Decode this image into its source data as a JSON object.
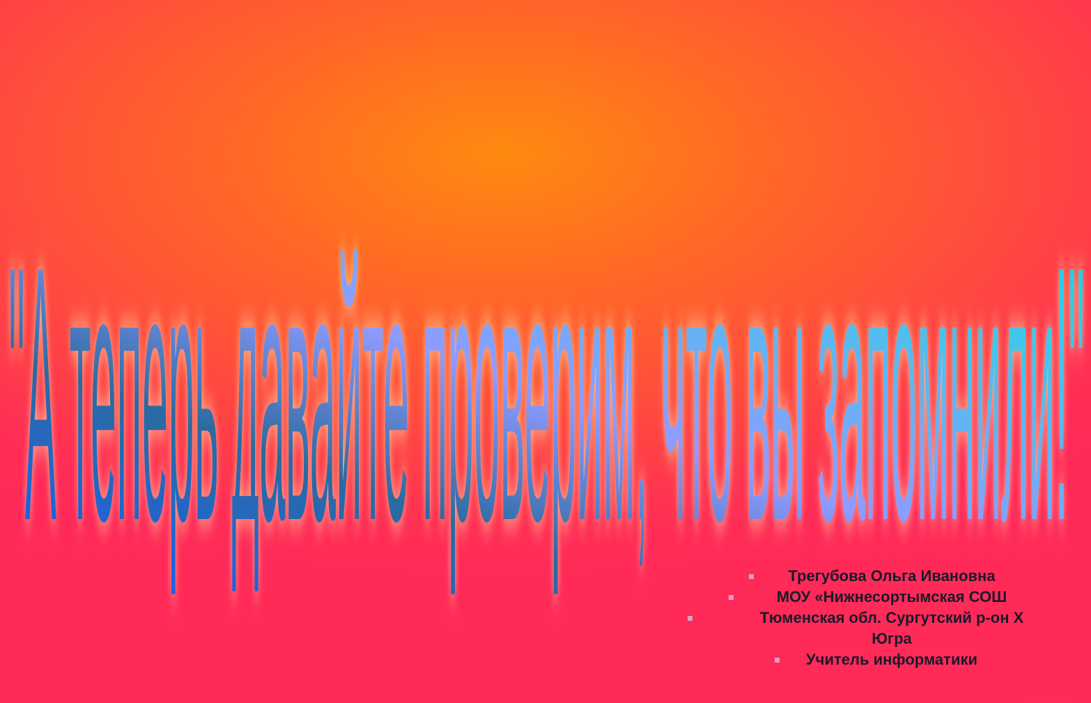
{
  "slide": {
    "title": "\"А теперь давайте проверим,  что вы запомнили!\"",
    "colors": {
      "background_center": "#ff8a10",
      "background_edge": "#ff2a58",
      "title_gradient": [
        "#1560ff",
        "#2c6aa0",
        "#8f9bff",
        "#3ec8e8",
        "#00dada"
      ],
      "title_glow": "#ffd6a0"
    }
  },
  "author": {
    "lines": [
      "Трегубова Ольга Ивановна",
      "МОУ «Нижнесортымская СОШ",
      "Тюменская обл. Сургутский р-он Х",
      "Югра",
      "Учитель информатики"
    ],
    "bullet_icon": "square-bullet-icon"
  }
}
